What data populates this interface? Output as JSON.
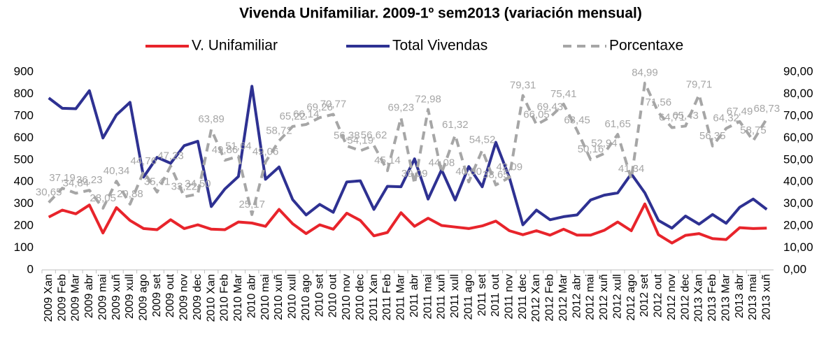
{
  "chart_data": {
    "type": "line",
    "title": "Vivenda Unifamiliar. 2009-1º sem2013 (variación mensual)",
    "categories": [
      "2009 Xan",
      "2009 Feb",
      "2009 Mar",
      "2009 abr",
      "2009 mai",
      "2009 xuñ",
      "2009 xull",
      "2009 ago",
      "2009 set",
      "2009 out",
      "2009 nov",
      "2009 dec",
      "2010 Xan",
      "2010 Feb",
      "2010 Mar",
      "2010 abr",
      "2010 mai",
      "2010 xuñ",
      "2010 xull",
      "2010 ago",
      "2010 set",
      "2010 out",
      "2010 nov",
      "2010 dec",
      "2011 Xan",
      "2011 Feb",
      "2011 Mar",
      "2011 abr",
      "2011 mai",
      "2011 xuñ",
      "2011 xull",
      "2011 ago",
      "2011 set",
      "2011 out",
      "2011 nov",
      "2011 dec",
      "2012 Xan",
      "2012 Feb",
      "2012 Mar",
      "2012 abr",
      "2012 mai",
      "2012 xuñ",
      "2012 xull",
      "2012 ago",
      "2012 set",
      "2012 out",
      "2012 nov",
      "2012 dec",
      "2013 Xan",
      "2013 Feb",
      "2013 Mar",
      "2013 abr",
      "2013 mai",
      "2013 xuñ"
    ],
    "series": [
      {
        "name": "V. Unifamiliar",
        "color": "#e8242b",
        "values": [
          240,
          272,
          255,
          295,
          168,
          283,
          225,
          188,
          183,
          228,
          188,
          205,
          185,
          183,
          218,
          213,
          198,
          275,
          210,
          165,
          205,
          185,
          258,
          225,
          155,
          170,
          260,
          198,
          235,
          202,
          195,
          188,
          200,
          222,
          178,
          160,
          178,
          158,
          185,
          158,
          158,
          180,
          218,
          178,
          300,
          160,
          122,
          157,
          165,
          142,
          138,
          192,
          188,
          190
        ]
      },
      {
        "name": "Total Vivendas",
        "color": "#2e3192",
        "values": [
          782,
          735,
          733,
          815,
          600,
          705,
          762,
          422,
          512,
          485,
          565,
          585,
          288,
          368,
          425,
          835,
          412,
          468,
          320,
          250,
          298,
          262,
          400,
          405,
          275,
          380,
          378,
          505,
          322,
          455,
          318,
          470,
          378,
          580,
          420,
          205,
          272,
          228,
          242,
          250,
          318,
          340,
          350,
          437,
          350,
          225,
          190,
          245,
          208,
          252,
          212,
          285,
          322,
          275
        ]
      },
      {
        "name": "Porcentaxe",
        "color": "#a6a6a6",
        "axis": "y2",
        "dashed": true,
        "values": [
          30.65,
          37.19,
          34.84,
          36.23,
          28.05,
          40.34,
          29.88,
          44.76,
          35.41,
          47.23,
          33.22,
          34.5,
          63.89,
          49.86,
          51.64,
          25.17,
          49.06,
          58.72,
          65.22,
          66.14,
          69.26,
          70.77,
          56.38,
          54.19,
          56.62,
          45.14,
          69.23,
          39.09,
          72.98,
          44.08,
          61.32,
          40.0,
          54.52,
          38.65,
          42.09,
          79.31,
          66.05,
          69.43,
          75.41,
          63.45,
          50.16,
          52.94,
          61.65,
          41.34,
          84.99,
          71.56,
          64.71,
          65.43,
          79.71,
          56.35,
          64.32,
          67.49,
          58.75,
          68.73
        ],
        "value_labels": [
          "30,65",
          "37,19",
          "34,84",
          "36,23",
          "28,05",
          "40,34",
          "29,88",
          "44,76",
          "35,41",
          "47,23",
          "33,22",
          "34,50",
          "63,89",
          "49,86",
          "51,64",
          "25,17",
          "49,06",
          "58,72",
          "65,22",
          "66,14",
          "69,26",
          "70,77",
          "56,38",
          "54,19",
          "56,62",
          "45,14",
          "69,23",
          "39,09",
          "72,98",
          "44,08",
          "61,32",
          "40,00",
          "54,52",
          "38,65",
          "42,09",
          "79,31",
          "66,05",
          "69,43",
          "75,41",
          "63,45",
          "50,16",
          "52,94",
          "61,65",
          "41,34",
          "84,99",
          "71,56",
          "64,71",
          "65,43",
          "79,71",
          "56,35",
          "64,32",
          "67,49",
          "58,75",
          "68,73"
        ]
      }
    ],
    "ylim": [
      0,
      900
    ],
    "yticks": [
      0,
      100,
      200,
      300,
      400,
      500,
      600,
      700,
      800,
      900
    ],
    "y2lim": [
      0,
      90
    ],
    "y2ticks": [
      {
        "value": 0,
        "label": "0,00"
      },
      {
        "value": 10,
        "label": "10,00"
      },
      {
        "value": 20,
        "label": "20,00"
      },
      {
        "value": 30,
        "label": "30,00"
      },
      {
        "value": 40,
        "label": "40,00"
      },
      {
        "value": 50,
        "label": "50,00"
      },
      {
        "value": 60,
        "label": "60,00"
      },
      {
        "value": 70,
        "label": "70,00"
      },
      {
        "value": 80,
        "label": "80,00"
      },
      {
        "value": 90,
        "label": "90,00"
      }
    ],
    "legend": "top"
  }
}
